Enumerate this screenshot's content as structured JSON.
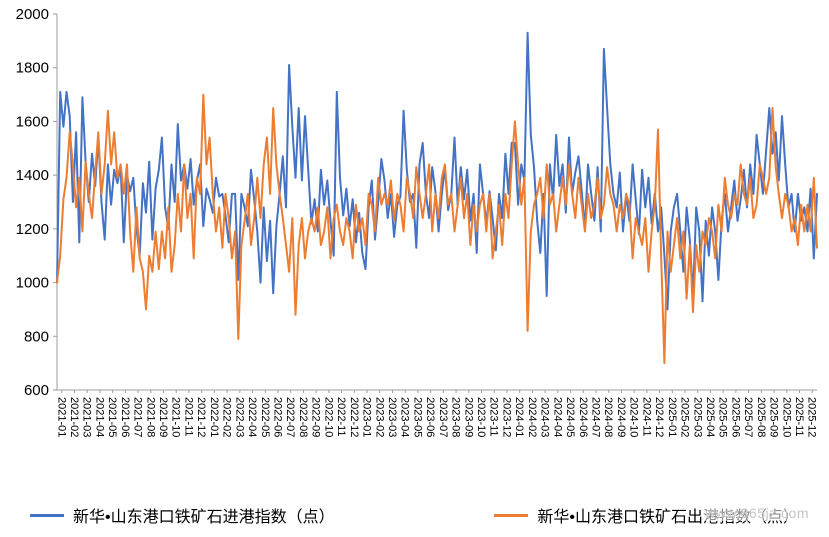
{
  "watermark": "www.365jz.com",
  "chart_data": {
    "type": "line",
    "title": "",
    "xlabel": "",
    "ylabel": "",
    "ylim": [
      600,
      2000
    ],
    "yticks": [
      600,
      800,
      1000,
      1200,
      1400,
      1600,
      1800,
      2000
    ],
    "grid": false,
    "legend_position": "bottom",
    "points_per_month": 4,
    "categories": [
      "2021-01",
      "2021-02",
      "2021-03",
      "2021-04",
      "2021-05",
      "2021-06",
      "2021-07",
      "2021-08",
      "2021-09",
      "2021-10",
      "2021-11",
      "2021-12",
      "2022-01",
      "2022-02",
      "2022-03",
      "2022-04",
      "2022-05",
      "2022-06",
      "2022-07",
      "2022-08",
      "2022-09",
      "2022-10",
      "2022-11",
      "2022-12",
      "2023-01",
      "2023-02",
      "2023-03",
      "2023-04",
      "2023-05",
      "2023-06",
      "2023-07",
      "2023-08",
      "2023-09",
      "2023-10",
      "2023-11",
      "2023-12",
      "2024-01",
      "2024-02",
      "2024-03",
      "2024-04",
      "2024-05",
      "2024-06",
      "2024-07",
      "2024-08",
      "2024-09",
      "2024-10",
      "2024-11",
      "2024-12",
      "2025-01",
      "2025-02",
      "2025-03",
      "2025-04",
      "2025-05",
      "2025-06",
      "2025-07",
      "2025-08",
      "2025-09",
      "2025-10",
      "2025-11",
      "2025-12"
    ],
    "series": [
      {
        "name": "新华•山东港口铁矿石进港指数（点）",
        "color": "#4472C4",
        "values": [
          1000,
          1710,
          1580,
          1710,
          1620,
          1300,
          1560,
          1150,
          1690,
          1450,
          1300,
          1480,
          1360,
          1540,
          1300,
          1160,
          1440,
          1290,
          1420,
          1370,
          1430,
          1150,
          1400,
          1340,
          1390,
          1200,
          1100,
          1370,
          1260,
          1450,
          1160,
          1350,
          1420,
          1540,
          1280,
          1200,
          1440,
          1300,
          1590,
          1380,
          1440,
          1350,
          1460,
          1290,
          1380,
          1440,
          1210,
          1350,
          1310,
          1260,
          1390,
          1320,
          1330,
          1250,
          1150,
          1330,
          1330,
          1010,
          1330,
          1280,
          1210,
          1420,
          1310,
          1190,
          1000,
          1280,
          1080,
          1230,
          960,
          1210,
          1330,
          1470,
          1280,
          1810,
          1580,
          1390,
          1650,
          1380,
          1620,
          1420,
          1220,
          1310,
          1190,
          1420,
          1290,
          1380,
          1230,
          1100,
          1710,
          1390,
          1250,
          1350,
          1210,
          1310,
          1150,
          1260,
          1110,
          1050,
          1280,
          1380,
          1160,
          1300,
          1460,
          1380,
          1240,
          1330,
          1170,
          1290,
          1320,
          1640,
          1420,
          1300,
          1330,
          1130,
          1440,
          1520,
          1330,
          1240,
          1430,
          1340,
          1190,
          1330,
          1430,
          1270,
          1330,
          1540,
          1290,
          1430,
          1310,
          1420,
          1230,
          1330,
          1110,
          1440,
          1330,
          1220,
          1340,
          1240,
          1120,
          1330,
          1240,
          1480,
          1330,
          1520,
          1520,
          1290,
          1440,
          1380,
          1930,
          1550,
          1430,
          1230,
          1110,
          1330,
          950,
          1440,
          1310,
          1550,
          1360,
          1440,
          1260,
          1540,
          1330,
          1410,
          1470,
          1340,
          1200,
          1440,
          1330,
          1230,
          1430,
          1190,
          1870,
          1650,
          1440,
          1330,
          1280,
          1410,
          1190,
          1330,
          1230,
          1440,
          1310,
          1180,
          1420,
          1280,
          1390,
          1220,
          1330,
          1190,
          1280,
          1100,
          900,
          1190,
          1280,
          1330,
          1190,
          1040,
          1280,
          1160,
          950,
          1280,
          1190,
          930,
          1230,
          1100,
          1280,
          1190,
          1010,
          1230,
          1330,
          1190,
          1280,
          1380,
          1230,
          1310,
          1420,
          1280,
          1440,
          1330,
          1550,
          1440,
          1330,
          1490,
          1650,
          1480,
          1560,
          1380,
          1620,
          1440,
          1280,
          1330,
          1190,
          1330,
          1230,
          1280,
          1190,
          1350,
          1090,
          1330
        ]
      },
      {
        "name": "新华•山东港口铁矿石出港指数（点）",
        "color": "#ED7D31",
        "values": [
          1000,
          1100,
          1310,
          1390,
          1560,
          1440,
          1280,
          1390,
          1190,
          1450,
          1330,
          1240,
          1410,
          1560,
          1330,
          1440,
          1640,
          1440,
          1560,
          1390,
          1440,
          1330,
          1440,
          1190,
          1040,
          1280,
          1090,
          1040,
          900,
          1100,
          1040,
          1190,
          1050,
          1190,
          1090,
          1280,
          1040,
          1140,
          1330,
          1190,
          1440,
          1240,
          1330,
          1090,
          1390,
          1330,
          1700,
          1440,
          1540,
          1330,
          1190,
          1280,
          1130,
          1330,
          1240,
          1090,
          1190,
          790,
          1140,
          1230,
          1330,
          1140,
          1240,
          1390,
          1240,
          1440,
          1540,
          1330,
          1650,
          1440,
          1330,
          1240,
          1140,
          1040,
          1240,
          880,
          1140,
          1240,
          1090,
          1190,
          1240,
          1190,
          1280,
          1140,
          1190,
          1280,
          1090,
          1240,
          1290,
          1190,
          1140,
          1240,
          1190,
          1090,
          1290,
          1190,
          1240,
          1140,
          1330,
          1290,
          1190,
          1390,
          1290,
          1330,
          1290,
          1380,
          1230,
          1330,
          1290,
          1190,
          1390,
          1330,
          1240,
          1430,
          1330,
          1240,
          1330,
          1440,
          1190,
          1330,
          1240,
          1390,
          1440,
          1290,
          1330,
          1190,
          1290,
          1390,
          1240,
          1330,
          1140,
          1290,
          1190,
          1290,
          1330,
          1190,
          1330,
          1090,
          1190,
          1290,
          1140,
          1330,
          1240,
          1440,
          1600,
          1440,
          1290,
          1390,
          820,
          1190,
          1290,
          1330,
          1390,
          1240,
          1440,
          1290,
          1330,
          1190,
          1290,
          1390,
          1290,
          1440,
          1330,
          1240,
          1390,
          1290,
          1190,
          1330,
          1240,
          1290,
          1390,
          1240,
          1290,
          1430,
          1330,
          1290,
          1190,
          1290,
          1240,
          1330,
          1290,
          1090,
          1240,
          1190,
          1140,
          1240,
          1040,
          1190,
          1290,
          1570,
          1090,
          700,
          1190,
          1040,
          1140,
          1240,
          1090,
          1190,
          940,
          1140,
          890,
          1140,
          1040,
          1190,
          1140,
          1240,
          1190,
          1090,
          1290,
          1190,
          1390,
          1290,
          1240,
          1330,
          1290,
          1440,
          1330,
          1290,
          1390,
          1240,
          1290,
          1440,
          1390,
          1330,
          1390,
          1650,
          1430,
          1330,
          1240,
          1330,
          1290,
          1190,
          1240,
          1140,
          1290,
          1190,
          1290,
          1190,
          1390,
          1130
        ]
      }
    ]
  }
}
